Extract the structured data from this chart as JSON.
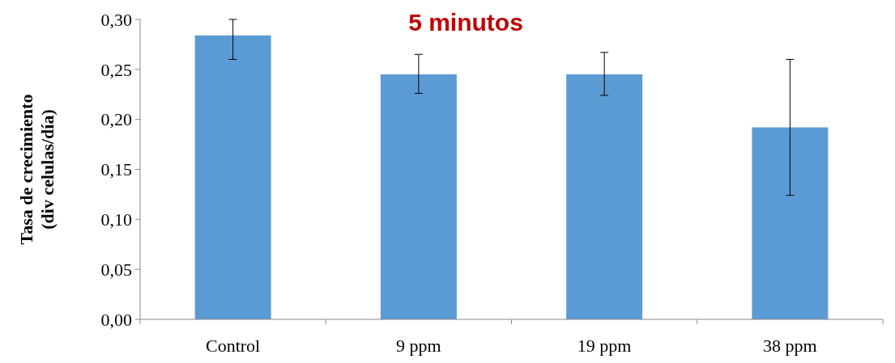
{
  "chart_data": {
    "type": "bar",
    "title": "5 minutos",
    "ylabel": "Tasa de crecimiento\n(div celulas/día)",
    "categories": [
      "Control",
      "9 ppm",
      "19 ppm",
      "38 ppm"
    ],
    "values": [
      0.284,
      0.245,
      0.245,
      0.192
    ],
    "errors": [
      [
        0.26,
        0.3
      ],
      [
        0.226,
        0.265
      ],
      [
        0.224,
        0.267
      ],
      [
        0.124,
        0.26
      ]
    ],
    "color": "#5b9bd5",
    "ylim": [
      0,
      0.3
    ],
    "yticks": [
      {
        "value": 0,
        "label": "0,00"
      },
      {
        "value": 0.05,
        "label": "0,05"
      },
      {
        "value": 0.1,
        "label": "0,10"
      },
      {
        "value": 0.15,
        "label": "0,15"
      },
      {
        "value": 0.2,
        "label": "0,20"
      },
      {
        "value": 0.25,
        "label": "0,25"
      },
      {
        "value": 0.3,
        "label": "0,30"
      }
    ],
    "grid": false
  }
}
